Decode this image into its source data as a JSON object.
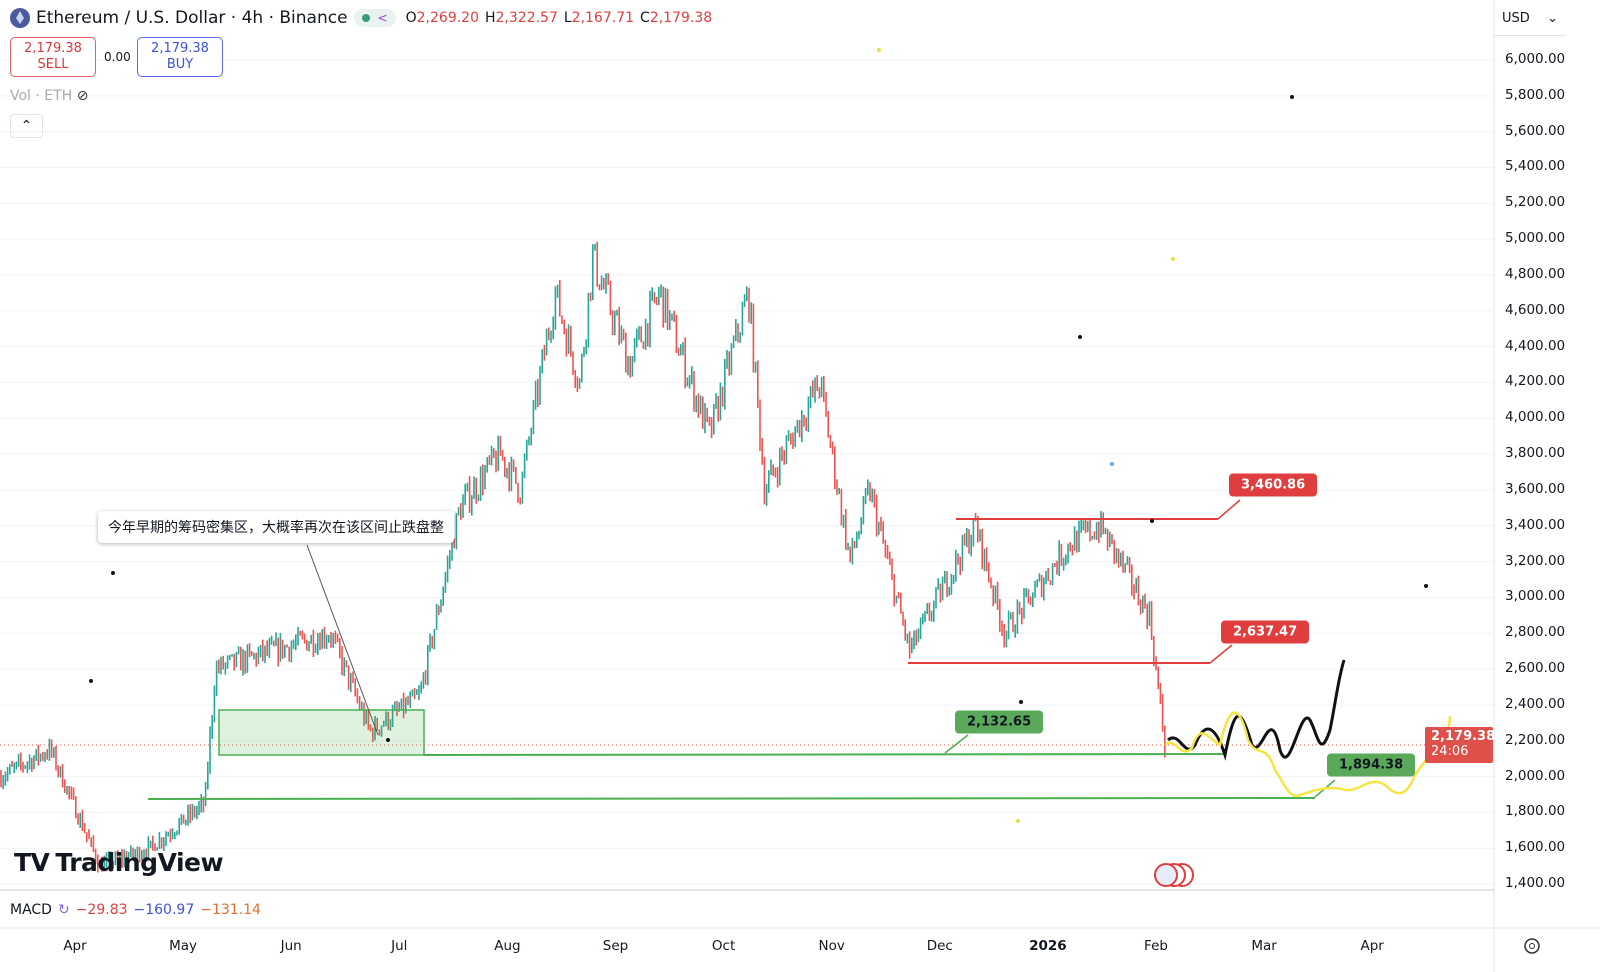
{
  "header": {
    "title": "Ethereum / U.S. Dollar · 4h · Binance",
    "ohlc": {
      "o_label": "O",
      "o": "2,269.20",
      "h_label": "H",
      "h": "2,322.57",
      "l_label": "L",
      "l": "2,167.71",
      "c_label": "C",
      "c": "2,179.38"
    }
  },
  "trade": {
    "sell_price": "2,179.38",
    "sell_label": "SELL",
    "spread": "0.00",
    "buy_price": "2,179.38",
    "buy_label": "BUY"
  },
  "volume_label": "Vol · ETH",
  "currency": "USD",
  "current_price": "2,179.38",
  "countdown": "24:06",
  "annotation": "今年早期的筹码密集区，大概率再次在该区间止跌盘整",
  "levels": {
    "l1": "3,460.86",
    "l2": "2,637.47",
    "l3": "2,132.65",
    "l4": "1,894.38"
  },
  "macd": {
    "label": "MACD",
    "v1": "−29.83",
    "v2": "−160.97",
    "v3": "−131.14"
  },
  "brand": "TradingView",
  "colors": {
    "up": "#26a69a",
    "down": "#ef5350",
    "red_level": "#e03e3e",
    "green_level": "#4caf50",
    "yellow": "#f5e642"
  },
  "chart_data": {
    "type": "candlestick",
    "y_ticks": [
      "6,000.00",
      "5,800.00",
      "5,600.00",
      "5,400.00",
      "5,200.00",
      "5,000.00",
      "4,800.00",
      "4,600.00",
      "4,400.00",
      "4,200.00",
      "4,000.00",
      "3,800.00",
      "3,600.00",
      "3,400.00",
      "3,200.00",
      "3,000.00",
      "2,800.00",
      "2,600.00",
      "2,400.00",
      "2,200.00",
      "2,000.00",
      "1,800.00",
      "1,600.00",
      "1,400.00"
    ],
    "x_ticks": [
      "Apr",
      "May",
      "Jun",
      "Jul",
      "Aug",
      "Sep",
      "Oct",
      "Nov",
      "Dec",
      "2026",
      "Feb",
      "Mar",
      "Apr"
    ],
    "ylim": [
      1400,
      6000
    ],
    "waypoints_months_since_apr_price": [
      [
        -0.69,
        2000
      ],
      [
        -0.23,
        2150
      ],
      [
        0.23,
        1500
      ],
      [
        0.69,
        1600
      ],
      [
        1.2,
        1850
      ],
      [
        1.3,
        2600
      ],
      [
        2.36,
        2800
      ],
      [
        2.73,
        2250
      ],
      [
        3.19,
        2450
      ],
      [
        3.56,
        3500
      ],
      [
        3.93,
        3800
      ],
      [
        4.12,
        3600
      ],
      [
        4.44,
        4700
      ],
      [
        4.67,
        4200
      ],
      [
        4.79,
        4900
      ],
      [
        5.13,
        4300
      ],
      [
        5.41,
        4700
      ],
      [
        5.87,
        3900
      ],
      [
        6.23,
        4700
      ],
      [
        6.38,
        3600
      ],
      [
        6.89,
        4200
      ],
      [
        7.17,
        3200
      ],
      [
        7.35,
        3600
      ],
      [
        7.72,
        2700
      ],
      [
        8.33,
        3400
      ],
      [
        8.6,
        2800
      ],
      [
        9.2,
        3300
      ],
      [
        9.48,
        3400
      ],
      [
        9.94,
        2900
      ],
      [
        10.08,
        2179
      ]
    ]
  }
}
